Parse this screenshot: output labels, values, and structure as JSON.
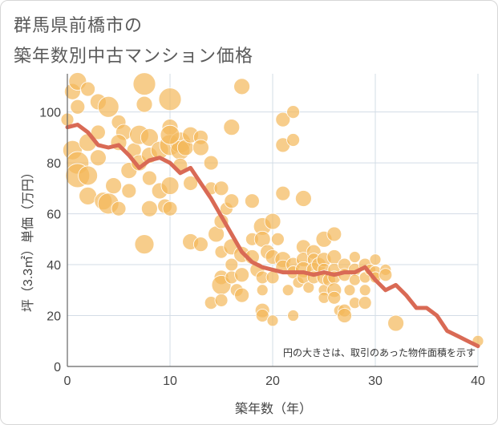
{
  "header": {
    "title_line1": "群馬県前橋市の",
    "title_line2": "築年数別中古マンション価格"
  },
  "colors": {
    "bubble": "#f3b85a",
    "line": "#d96a55",
    "grid": "#d3dce6",
    "background": "#ffffff"
  },
  "chart_data": {
    "type": "scatter",
    "xlabel": "築年数（年）",
    "ylabel": "坪（3.3㎡）単価（万円）",
    "xlim": [
      0,
      40
    ],
    "ylim": [
      0,
      115
    ],
    "xticks": [
      0,
      10,
      20,
      30,
      40
    ],
    "yticks": [
      0,
      20,
      40,
      60,
      80,
      100
    ],
    "grid": true,
    "annotation": "円の大きさは、取引のあった物件面積を示す",
    "scatter_points": [
      {
        "x": 0.5,
        "y": 108,
        "s": 10
      },
      {
        "x": 1,
        "y": 112,
        "s": 11
      },
      {
        "x": 2,
        "y": 109,
        "s": 9
      },
      {
        "x": 1,
        "y": 102,
        "s": 9
      },
      {
        "x": 3,
        "y": 104,
        "s": 10
      },
      {
        "x": 4,
        "y": 102,
        "s": 13
      },
      {
        "x": 0,
        "y": 97,
        "s": 8
      },
      {
        "x": 0.5,
        "y": 85,
        "s": 12
      },
      {
        "x": 1,
        "y": 80,
        "s": 14
      },
      {
        "x": 1,
        "y": 75,
        "s": 15
      },
      {
        "x": 2,
        "y": 88,
        "s": 11
      },
      {
        "x": 2,
        "y": 75,
        "s": 12
      },
      {
        "x": 2,
        "y": 67,
        "s": 11
      },
      {
        "x": 3,
        "y": 82,
        "s": 10
      },
      {
        "x": 3.5,
        "y": 65,
        "s": 11
      },
      {
        "x": 4,
        "y": 64,
        "s": 13
      },
      {
        "x": 4.5,
        "y": 71,
        "s": 10
      },
      {
        "x": 5,
        "y": 96,
        "s": 9
      },
      {
        "x": 5,
        "y": 62,
        "s": 9
      },
      {
        "x": 5.5,
        "y": 92,
        "s": 10
      },
      {
        "x": 6,
        "y": 77,
        "s": 10
      },
      {
        "x": 6,
        "y": 69,
        "s": 9
      },
      {
        "x": 6.5,
        "y": 85,
        "s": 9
      },
      {
        "x": 7,
        "y": 91,
        "s": 12
      },
      {
        "x": 7,
        "y": 80,
        "s": 10
      },
      {
        "x": 7.5,
        "y": 111,
        "s": 14
      },
      {
        "x": 7.5,
        "y": 103,
        "s": 10
      },
      {
        "x": 8,
        "y": 90,
        "s": 11
      },
      {
        "x": 8,
        "y": 83,
        "s": 10
      },
      {
        "x": 8,
        "y": 74,
        "s": 9
      },
      {
        "x": 8,
        "y": 62,
        "s": 10
      },
      {
        "x": 7.5,
        "y": 48,
        "s": 12
      },
      {
        "x": 9,
        "y": 85,
        "s": 11
      },
      {
        "x": 9,
        "y": 69,
        "s": 10
      },
      {
        "x": 9.5,
        "y": 63,
        "s": 9
      },
      {
        "x": 10,
        "y": 105,
        "s": 14
      },
      {
        "x": 10,
        "y": 94,
        "s": 10
      },
      {
        "x": 10,
        "y": 87,
        "s": 13
      },
      {
        "x": 10,
        "y": 71,
        "s": 11
      },
      {
        "x": 10,
        "y": 62,
        "s": 9
      },
      {
        "x": 11,
        "y": 88,
        "s": 13
      },
      {
        "x": 11,
        "y": 85,
        "s": 12
      },
      {
        "x": 11.5,
        "y": 86,
        "s": 10
      },
      {
        "x": 12,
        "y": 91,
        "s": 10
      },
      {
        "x": 12,
        "y": 72,
        "s": 9
      },
      {
        "x": 12,
        "y": 49,
        "s": 10
      },
      {
        "x": 13,
        "y": 90,
        "s": 9
      },
      {
        "x": 13,
        "y": 86,
        "s": 10
      },
      {
        "x": 13,
        "y": 48,
        "s": 9
      },
      {
        "x": 14,
        "y": 80,
        "s": 9
      },
      {
        "x": 14,
        "y": 70,
        "s": 8
      },
      {
        "x": 14,
        "y": 25,
        "s": 8
      },
      {
        "x": 14.5,
        "y": 52,
        "s": 10
      },
      {
        "x": 15,
        "y": 70,
        "s": 9
      },
      {
        "x": 15,
        "y": 57,
        "s": 9
      },
      {
        "x": 15,
        "y": 45,
        "s": 8
      },
      {
        "x": 15,
        "y": 35,
        "s": 9
      },
      {
        "x": 15,
        "y": 32,
        "s": 12
      },
      {
        "x": 15,
        "y": 26,
        "s": 8
      },
      {
        "x": 15.5,
        "y": 62,
        "s": 8
      },
      {
        "x": 16,
        "y": 94,
        "s": 10
      },
      {
        "x": 16,
        "y": 65,
        "s": 9
      },
      {
        "x": 16,
        "y": 47,
        "s": 10
      },
      {
        "x": 16,
        "y": 40,
        "s": 8
      },
      {
        "x": 16,
        "y": 35,
        "s": 8
      },
      {
        "x": 16.5,
        "y": 30,
        "s": 8
      },
      {
        "x": 17,
        "y": 110,
        "s": 10
      },
      {
        "x": 17,
        "y": 44,
        "s": 10
      },
      {
        "x": 17,
        "y": 36,
        "s": 9
      },
      {
        "x": 17,
        "y": 28,
        "s": 9
      },
      {
        "x": 18,
        "y": 65,
        "s": 9
      },
      {
        "x": 18,
        "y": 50,
        "s": 8
      },
      {
        "x": 18,
        "y": 43,
        "s": 9
      },
      {
        "x": 18.5,
        "y": 38,
        "s": 9
      },
      {
        "x": 19,
        "y": 55,
        "s": 11
      },
      {
        "x": 19,
        "y": 50,
        "s": 10
      },
      {
        "x": 19,
        "y": 35,
        "s": 8
      },
      {
        "x": 19,
        "y": 30,
        "s": 7
      },
      {
        "x": 19,
        "y": 22,
        "s": 9
      },
      {
        "x": 19,
        "y": 20,
        "s": 8
      },
      {
        "x": 19.5,
        "y": 45,
        "s": 9
      },
      {
        "x": 20,
        "y": 57,
        "s": 10
      },
      {
        "x": 20,
        "y": 43,
        "s": 9
      },
      {
        "x": 20,
        "y": 35,
        "s": 8
      },
      {
        "x": 20,
        "y": 18,
        "s": 7
      },
      {
        "x": 20.5,
        "y": 50,
        "s": 8
      },
      {
        "x": 21,
        "y": 97,
        "s": 9
      },
      {
        "x": 21,
        "y": 87,
        "s": 9
      },
      {
        "x": 21,
        "y": 68,
        "s": 9
      },
      {
        "x": 21,
        "y": 42,
        "s": 10
      },
      {
        "x": 21,
        "y": 39,
        "s": 9
      },
      {
        "x": 21.5,
        "y": 30,
        "s": 7
      },
      {
        "x": 22,
        "y": 100,
        "s": 8
      },
      {
        "x": 22,
        "y": 89,
        "s": 8
      },
      {
        "x": 22,
        "y": 40,
        "s": 9
      },
      {
        "x": 22,
        "y": 37,
        "s": 8
      },
      {
        "x": 22,
        "y": 20,
        "s": 7
      },
      {
        "x": 22.5,
        "y": 33,
        "s": 7
      },
      {
        "x": 23,
        "y": 66,
        "s": 10
      },
      {
        "x": 23,
        "y": 47,
        "s": 9
      },
      {
        "x": 23,
        "y": 42,
        "s": 9
      },
      {
        "x": 23,
        "y": 38,
        "s": 10
      },
      {
        "x": 23,
        "y": 35,
        "s": 8
      },
      {
        "x": 23.5,
        "y": 31,
        "s": 7
      },
      {
        "x": 24,
        "y": 45,
        "s": 9
      },
      {
        "x": 24,
        "y": 42,
        "s": 8
      },
      {
        "x": 24,
        "y": 38,
        "s": 9
      },
      {
        "x": 24,
        "y": 35,
        "s": 8
      },
      {
        "x": 24.5,
        "y": 40,
        "s": 9
      },
      {
        "x": 25,
        "y": 50,
        "s": 10
      },
      {
        "x": 25,
        "y": 42,
        "s": 9
      },
      {
        "x": 25,
        "y": 38,
        "s": 8
      },
      {
        "x": 25,
        "y": 35,
        "s": 9
      },
      {
        "x": 25,
        "y": 30,
        "s": 7
      },
      {
        "x": 25,
        "y": 27,
        "s": 7
      },
      {
        "x": 25.5,
        "y": 34,
        "s": 8
      },
      {
        "x": 26,
        "y": 52,
        "s": 9
      },
      {
        "x": 26,
        "y": 43,
        "s": 9
      },
      {
        "x": 26,
        "y": 38,
        "s": 8
      },
      {
        "x": 26,
        "y": 35,
        "s": 8
      },
      {
        "x": 26,
        "y": 30,
        "s": 9
      },
      {
        "x": 26,
        "y": 27,
        "s": 8
      },
      {
        "x": 26.5,
        "y": 22,
        "s": 7
      },
      {
        "x": 27,
        "y": 40,
        "s": 8
      },
      {
        "x": 27,
        "y": 36,
        "s": 8
      },
      {
        "x": 27,
        "y": 22,
        "s": 8
      },
      {
        "x": 27,
        "y": 20,
        "s": 9
      },
      {
        "x": 27.5,
        "y": 30,
        "s": 7
      },
      {
        "x": 28,
        "y": 43,
        "s": 7
      },
      {
        "x": 28,
        "y": 38,
        "s": 8
      },
      {
        "x": 28,
        "y": 34,
        "s": 7
      },
      {
        "x": 28,
        "y": 25,
        "s": 7
      },
      {
        "x": 29,
        "y": 40,
        "s": 8
      },
      {
        "x": 29,
        "y": 35,
        "s": 7
      },
      {
        "x": 29,
        "y": 30,
        "s": 7
      },
      {
        "x": 29,
        "y": 25,
        "s": 8
      },
      {
        "x": 29.5,
        "y": 38,
        "s": 7
      },
      {
        "x": 30,
        "y": 42,
        "s": 7
      },
      {
        "x": 30,
        "y": 37,
        "s": 8
      },
      {
        "x": 30,
        "y": 35,
        "s": 7
      },
      {
        "x": 31,
        "y": 38,
        "s": 7
      },
      {
        "x": 31,
        "y": 36,
        "s": 8
      },
      {
        "x": 32,
        "y": 17,
        "s": 10
      },
      {
        "x": 40,
        "y": 10,
        "s": 7
      },
      {
        "x": 10,
        "y": 91,
        "s": 12
      },
      {
        "x": 5,
        "y": 88,
        "s": 10
      },
      {
        "x": 3,
        "y": 92,
        "s": 9
      },
      {
        "x": 11,
        "y": 79,
        "s": 9
      }
    ],
    "series": [
      {
        "x": [
          0,
          1,
          2,
          3,
          4,
          5,
          6,
          7,
          8,
          9,
          10,
          11,
          12,
          13,
          14,
          15,
          16,
          17,
          18,
          19,
          20,
          21,
          22,
          23,
          24,
          25,
          26,
          27,
          28,
          29,
          30,
          31,
          32,
          33,
          34,
          35,
          36,
          37,
          38,
          39,
          40
        ],
        "y": [
          94,
          95,
          92,
          87,
          86,
          87,
          83,
          78,
          81,
          82,
          80,
          76,
          78,
          72,
          66,
          59,
          52,
          45,
          41,
          39,
          38,
          37,
          37,
          37,
          36,
          37,
          36,
          37,
          37,
          39,
          34,
          30,
          32,
          28,
          23,
          23,
          20,
          14,
          12,
          10,
          8
        ]
      }
    ]
  }
}
